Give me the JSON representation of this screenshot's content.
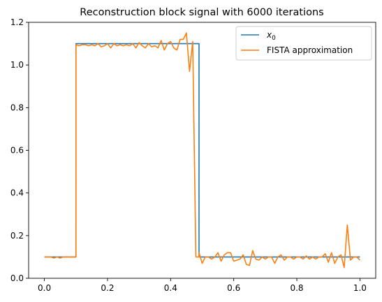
{
  "chart_data": {
    "type": "line",
    "title": "Reconstruction block signal with 6000 iterations",
    "xlim": [
      -0.05,
      1.05
    ],
    "ylim": [
      0.0,
      1.2
    ],
    "xticks": [
      0.0,
      0.2,
      0.4,
      0.6,
      0.8,
      1.0
    ],
    "xtick_labels": [
      "0.0",
      "0.2",
      "0.4",
      "0.6",
      "0.8",
      "1.0"
    ],
    "yticks": [
      0.0,
      0.2,
      0.4,
      0.6,
      0.8,
      1.0,
      1.2
    ],
    "ytick_labels": [
      "0.0",
      "0.2",
      "0.4",
      "0.6",
      "0.8",
      "1.0",
      "1.2"
    ],
    "grid": false,
    "legend_position": "top-right",
    "series": [
      {
        "name": "x0",
        "legend_label": "x",
        "legend_subscript": "0",
        "color": "#1f77b4",
        "x": [
          0.0,
          0.1,
          0.1,
          0.49,
          0.49,
          1.0
        ],
        "y": [
          0.1,
          0.1,
          1.1,
          1.1,
          0.1,
          0.1
        ]
      },
      {
        "name": "FISTA approximation",
        "legend_label": "FISTA approximation",
        "color": "#ff7f0e",
        "x": [
          0.0,
          0.01,
          0.02,
          0.03,
          0.04,
          0.05,
          0.06,
          0.07,
          0.08,
          0.09,
          0.1,
          0.1001,
          0.11,
          0.12,
          0.13,
          0.14,
          0.15,
          0.16,
          0.17,
          0.18,
          0.19,
          0.2,
          0.21,
          0.22,
          0.23,
          0.24,
          0.25,
          0.26,
          0.27,
          0.28,
          0.29,
          0.3,
          0.31,
          0.32,
          0.33,
          0.34,
          0.35,
          0.36,
          0.37,
          0.38,
          0.39,
          0.4,
          0.41,
          0.42,
          0.43,
          0.44,
          0.45,
          0.46,
          0.47,
          0.48,
          0.49,
          0.4901,
          0.5,
          0.51,
          0.52,
          0.53,
          0.54,
          0.55,
          0.56,
          0.57,
          0.58,
          0.59,
          0.6,
          0.61,
          0.62,
          0.63,
          0.64,
          0.65,
          0.66,
          0.67,
          0.68,
          0.69,
          0.7,
          0.71,
          0.72,
          0.73,
          0.74,
          0.75,
          0.76,
          0.77,
          0.78,
          0.79,
          0.8,
          0.81,
          0.82,
          0.83,
          0.84,
          0.85,
          0.86,
          0.87,
          0.88,
          0.89,
          0.9,
          0.91,
          0.92,
          0.93,
          0.94,
          0.95,
          0.96,
          0.97,
          0.98,
          0.99,
          1.0
        ],
        "y": [
          0.1,
          0.1,
          0.1,
          0.095,
          0.1,
          0.095,
          0.1,
          0.1,
          0.1,
          0.1,
          0.1,
          1.095,
          1.09,
          1.095,
          1.095,
          1.09,
          1.095,
          1.09,
          1.1,
          1.085,
          1.09,
          1.1,
          1.08,
          1.1,
          1.09,
          1.095,
          1.09,
          1.095,
          1.09,
          1.1,
          1.08,
          1.105,
          1.09,
          1.08,
          1.1,
          1.085,
          1.09,
          1.08,
          1.115,
          1.07,
          1.1,
          1.11,
          1.08,
          1.07,
          1.12,
          1.12,
          1.15,
          0.97,
          1.11,
          0.1,
          0.1,
          0.12,
          0.07,
          0.1,
          0.1,
          0.09,
          0.1,
          0.12,
          0.08,
          0.11,
          0.12,
          0.12,
          0.08,
          0.085,
          0.09,
          0.11,
          0.065,
          0.06,
          0.13,
          0.09,
          0.085,
          0.1,
          0.09,
          0.1,
          0.1,
          0.07,
          0.1,
          0.11,
          0.085,
          0.1,
          0.1,
          0.09,
          0.1,
          0.1,
          0.09,
          0.105,
          0.09,
          0.1,
          0.09,
          0.1,
          0.1,
          0.115,
          0.075,
          0.12,
          0.07,
          0.1,
          0.11,
          0.05,
          0.25,
          0.085,
          0.1,
          0.1,
          0.085
        ]
      }
    ]
  }
}
